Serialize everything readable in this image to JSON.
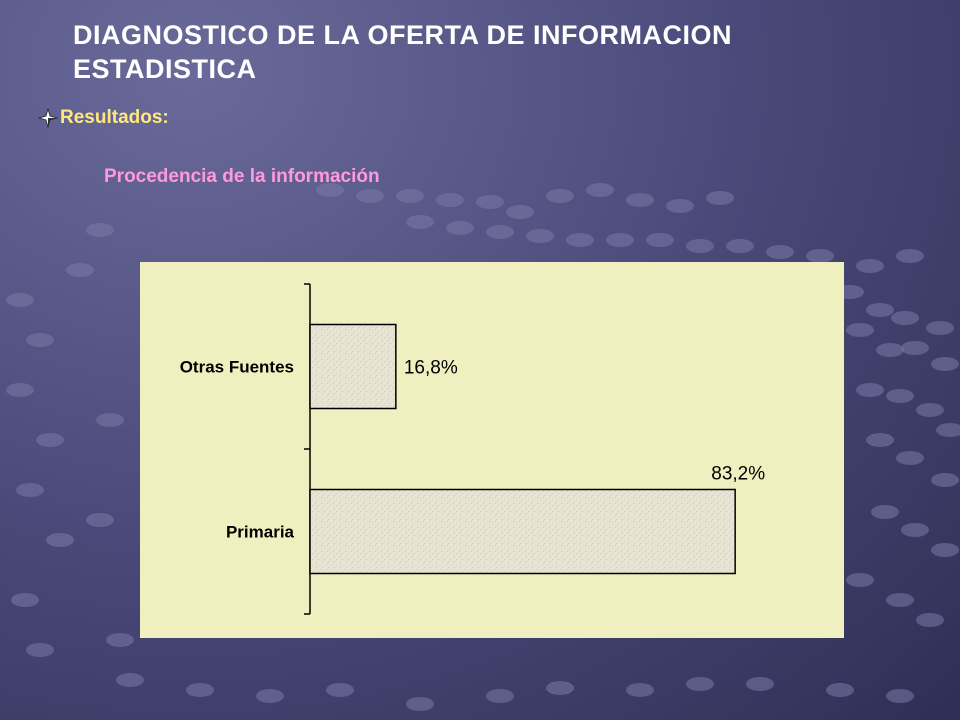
{
  "slide": {
    "title": "DIAGNOSTICO DE LA OFERTA DE INFORMACION ESTADISTICA",
    "bullet": "Resultados:",
    "subtitle": "Procedencia de la información"
  },
  "colors": {
    "background": "#4d4d7e",
    "title": "#ffffff",
    "bullet_text": "#ffe87a",
    "subtitle": "#ff99dd",
    "chart_background": "#efefbf",
    "bar_fill": "#e8e4d4"
  },
  "icons": [
    "four-point-star-bullet-icon"
  ],
  "chart_data": {
    "type": "bar",
    "orientation": "horizontal",
    "categories": [
      "Otras Fuentes",
      "Primaria"
    ],
    "values": [
      16.8,
      83.2
    ],
    "data_labels": [
      "16,8%",
      "83,2%"
    ],
    "unit": "%",
    "xlim": [
      0,
      100
    ],
    "grid": false,
    "legend": "none"
  }
}
